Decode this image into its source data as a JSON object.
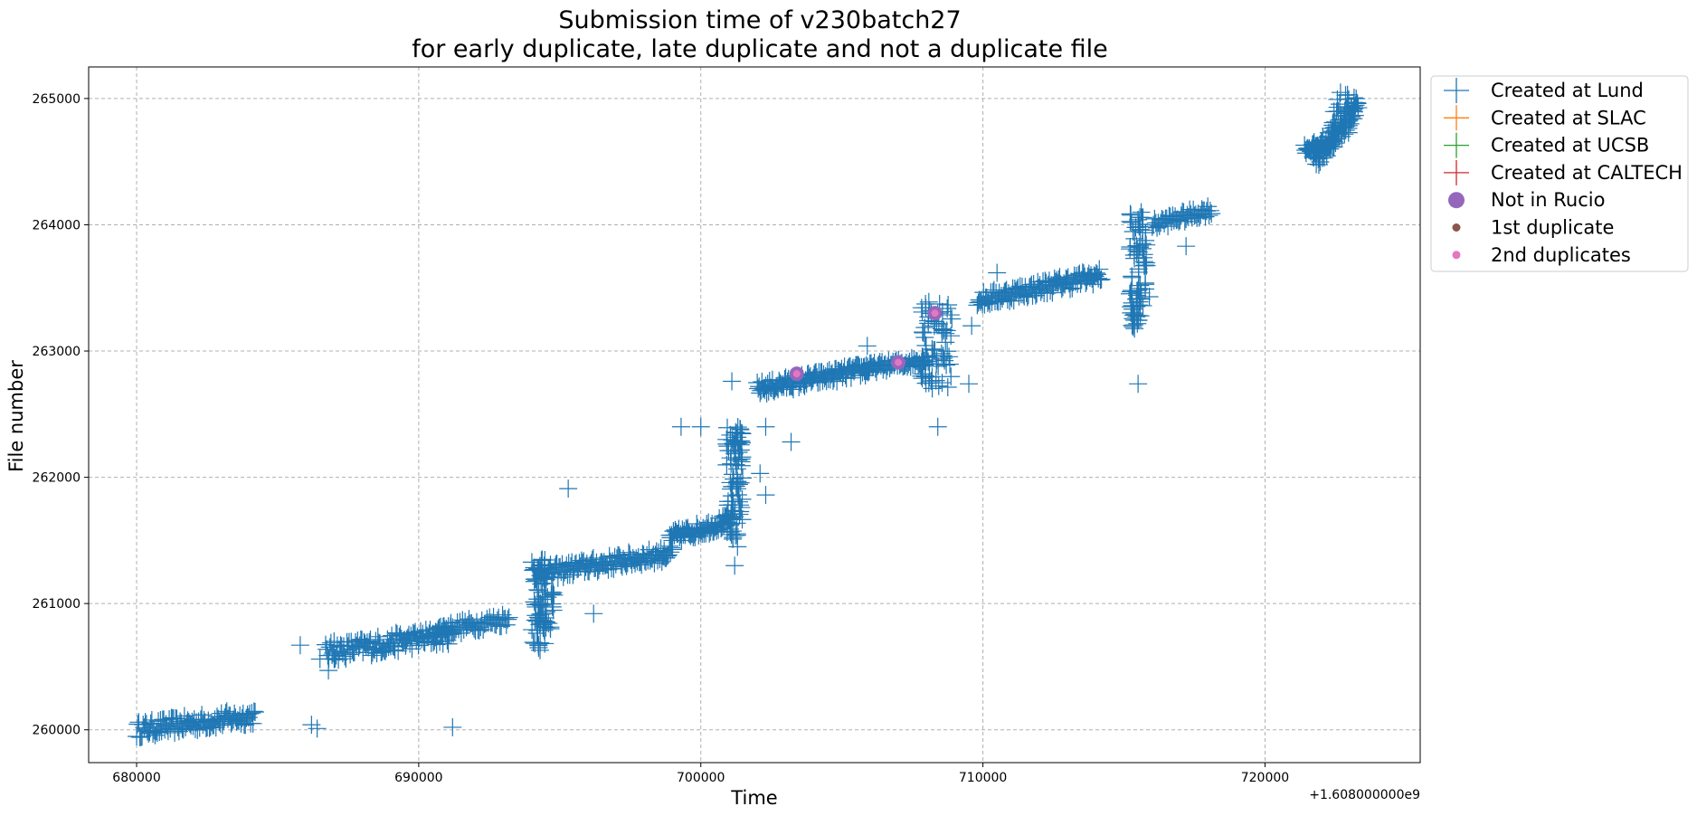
{
  "chart_data": {
    "type": "scatter",
    "title_line1": "Submission time of v230batch27",
    "title_line2": "for early duplicate, late duplicate and not a duplicate file",
    "xlabel": "Time",
    "ylabel": "File number",
    "x_offset_label": "+1.608000000e9",
    "xlim": [
      678300,
      725500
    ],
    "ylim": [
      259740,
      265250
    ],
    "x_ticks": [
      680000,
      690000,
      700000,
      710000,
      720000
    ],
    "x_tick_labels": [
      "680000",
      "690000",
      "700000",
      "710000",
      "720000"
    ],
    "y_ticks": [
      260000,
      261000,
      262000,
      263000,
      264000,
      265000
    ],
    "y_tick_labels": [
      "260000",
      "261000",
      "262000",
      "263000",
      "264000",
      "265000"
    ],
    "grid": true,
    "legend_position": "outside-upper-right",
    "colors": {
      "lund": "#1f77b4",
      "slac": "#ff7f0e",
      "ucsb": "#2ca02c",
      "caltech": "#d62728",
      "not_in_rucio": "#9467bd",
      "first_duplicate": "#8c564b",
      "second_duplicates": "#e377c2"
    },
    "legend": [
      {
        "label": "Created at Lund",
        "marker": "plus",
        "color": "#1f77b4"
      },
      {
        "label": "Created at SLAC",
        "marker": "plus",
        "color": "#ff7f0e"
      },
      {
        "label": "Created at UCSB",
        "marker": "plus",
        "color": "#2ca02c"
      },
      {
        "label": "Created at CALTECH",
        "marker": "plus",
        "color": "#d62728"
      },
      {
        "label": "Not in Rucio",
        "marker": "big-dot",
        "color": "#9467bd"
      },
      {
        "label": "1st duplicate",
        "marker": "dot",
        "color": "#8c564b"
      },
      {
        "label": "2nd duplicates",
        "marker": "dot",
        "color": "#e377c2"
      }
    ],
    "series": [
      {
        "name": "Created at Lund",
        "segments": [
          {
            "x0": 680000,
            "x1": 684200,
            "y0": 260000,
            "y1": 260110,
            "n": 110,
            "jitter": 130
          },
          {
            "x0": 686700,
            "x1": 691200,
            "y0": 260610,
            "y1": 260760,
            "n": 120,
            "jitter": 150
          },
          {
            "x0": 690500,
            "x1": 693200,
            "y0": 260780,
            "y1": 260880,
            "n": 60,
            "jitter": 110
          },
          {
            "x0": 694100,
            "x1": 699000,
            "y0": 261230,
            "y1": 261400,
            "n": 130,
            "jitter": 120
          },
          {
            "x0": 698900,
            "x1": 701100,
            "y0": 261520,
            "y1": 261660,
            "n": 70,
            "jitter": 110
          },
          {
            "x0": 702000,
            "x1": 706000,
            "y0": 262700,
            "y1": 262860,
            "n": 120,
            "jitter": 110
          },
          {
            "x0": 705800,
            "x1": 708100,
            "y0": 262860,
            "y1": 262930,
            "n": 60,
            "jitter": 80
          },
          {
            "x0": 709800,
            "x1": 714200,
            "y0": 263400,
            "y1": 263600,
            "n": 120,
            "jitter": 120
          },
          {
            "x0": 716000,
            "x1": 718100,
            "y0": 264000,
            "y1": 264120,
            "n": 50,
            "jitter": 90
          },
          {
            "x0": 721400,
            "x1": 722500,
            "y0": 264600,
            "y1": 264650,
            "n": 40,
            "jitter": 80
          },
          {
            "x0": 721700,
            "x1": 723300,
            "y0": 264500,
            "y1": 264950,
            "n": 70,
            "jitter": 190
          }
        ],
        "clusters": [
          {
            "x0": 694000,
            "x1": 694500,
            "y0": 260650,
            "y1": 261350,
            "n": 55
          },
          {
            "x0": 694300,
            "x1": 694800,
            "y0": 260800,
            "y1": 261100,
            "n": 25
          },
          {
            "x0": 700900,
            "x1": 701500,
            "y0": 261500,
            "y1": 262400,
            "n": 90
          },
          {
            "x0": 707800,
            "x1": 708900,
            "y0": 262700,
            "y1": 263400,
            "n": 70
          },
          {
            "x0": 715200,
            "x1": 715800,
            "y0": 263350,
            "y1": 264100,
            "n": 60
          },
          {
            "x0": 715250,
            "x1": 715600,
            "y0": 263150,
            "y1": 263450,
            "n": 25
          },
          {
            "x0": 722400,
            "x1": 723200,
            "y0": 264700,
            "y1": 265050,
            "n": 45
          }
        ],
        "points": [
          [
            685800,
            260670
          ],
          [
            686500,
            260560
          ],
          [
            686800,
            260470
          ],
          [
            686200,
            260040
          ],
          [
            686400,
            260010
          ],
          [
            691200,
            260020
          ],
          [
            695300,
            261910
          ],
          [
            696200,
            260920
          ],
          [
            698700,
            261420
          ],
          [
            699300,
            262400
          ],
          [
            700000,
            262400
          ],
          [
            701100,
            262760
          ],
          [
            702300,
            262400
          ],
          [
            702100,
            262030
          ],
          [
            702300,
            261860
          ],
          [
            703200,
            262280
          ],
          [
            705900,
            263040
          ],
          [
            708400,
            262400
          ],
          [
            708400,
            263300
          ],
          [
            709500,
            262740
          ],
          [
            709600,
            263200
          ],
          [
            710500,
            263620
          ],
          [
            715500,
            262740
          ],
          [
            715900,
            263430
          ],
          [
            717200,
            263830
          ],
          [
            701200,
            261300
          ],
          [
            694300,
            260630
          ],
          [
            701300,
            261450
          ],
          [
            687000,
            260700
          ],
          [
            689000,
            260680
          ]
        ]
      },
      {
        "name": "Created at SLAC",
        "points": []
      },
      {
        "name": "Created at UCSB",
        "points": []
      },
      {
        "name": "Created at CALTECH",
        "points": []
      },
      {
        "name": "Not in Rucio",
        "points": [
          [
            703400,
            262820
          ],
          [
            707000,
            262910
          ],
          [
            708300,
            263300
          ]
        ]
      },
      {
        "name": "1st duplicate",
        "points": []
      },
      {
        "name": "2nd duplicates",
        "points": [
          [
            703400,
            262820
          ],
          [
            707000,
            262910
          ],
          [
            708300,
            263300
          ]
        ]
      }
    ]
  }
}
